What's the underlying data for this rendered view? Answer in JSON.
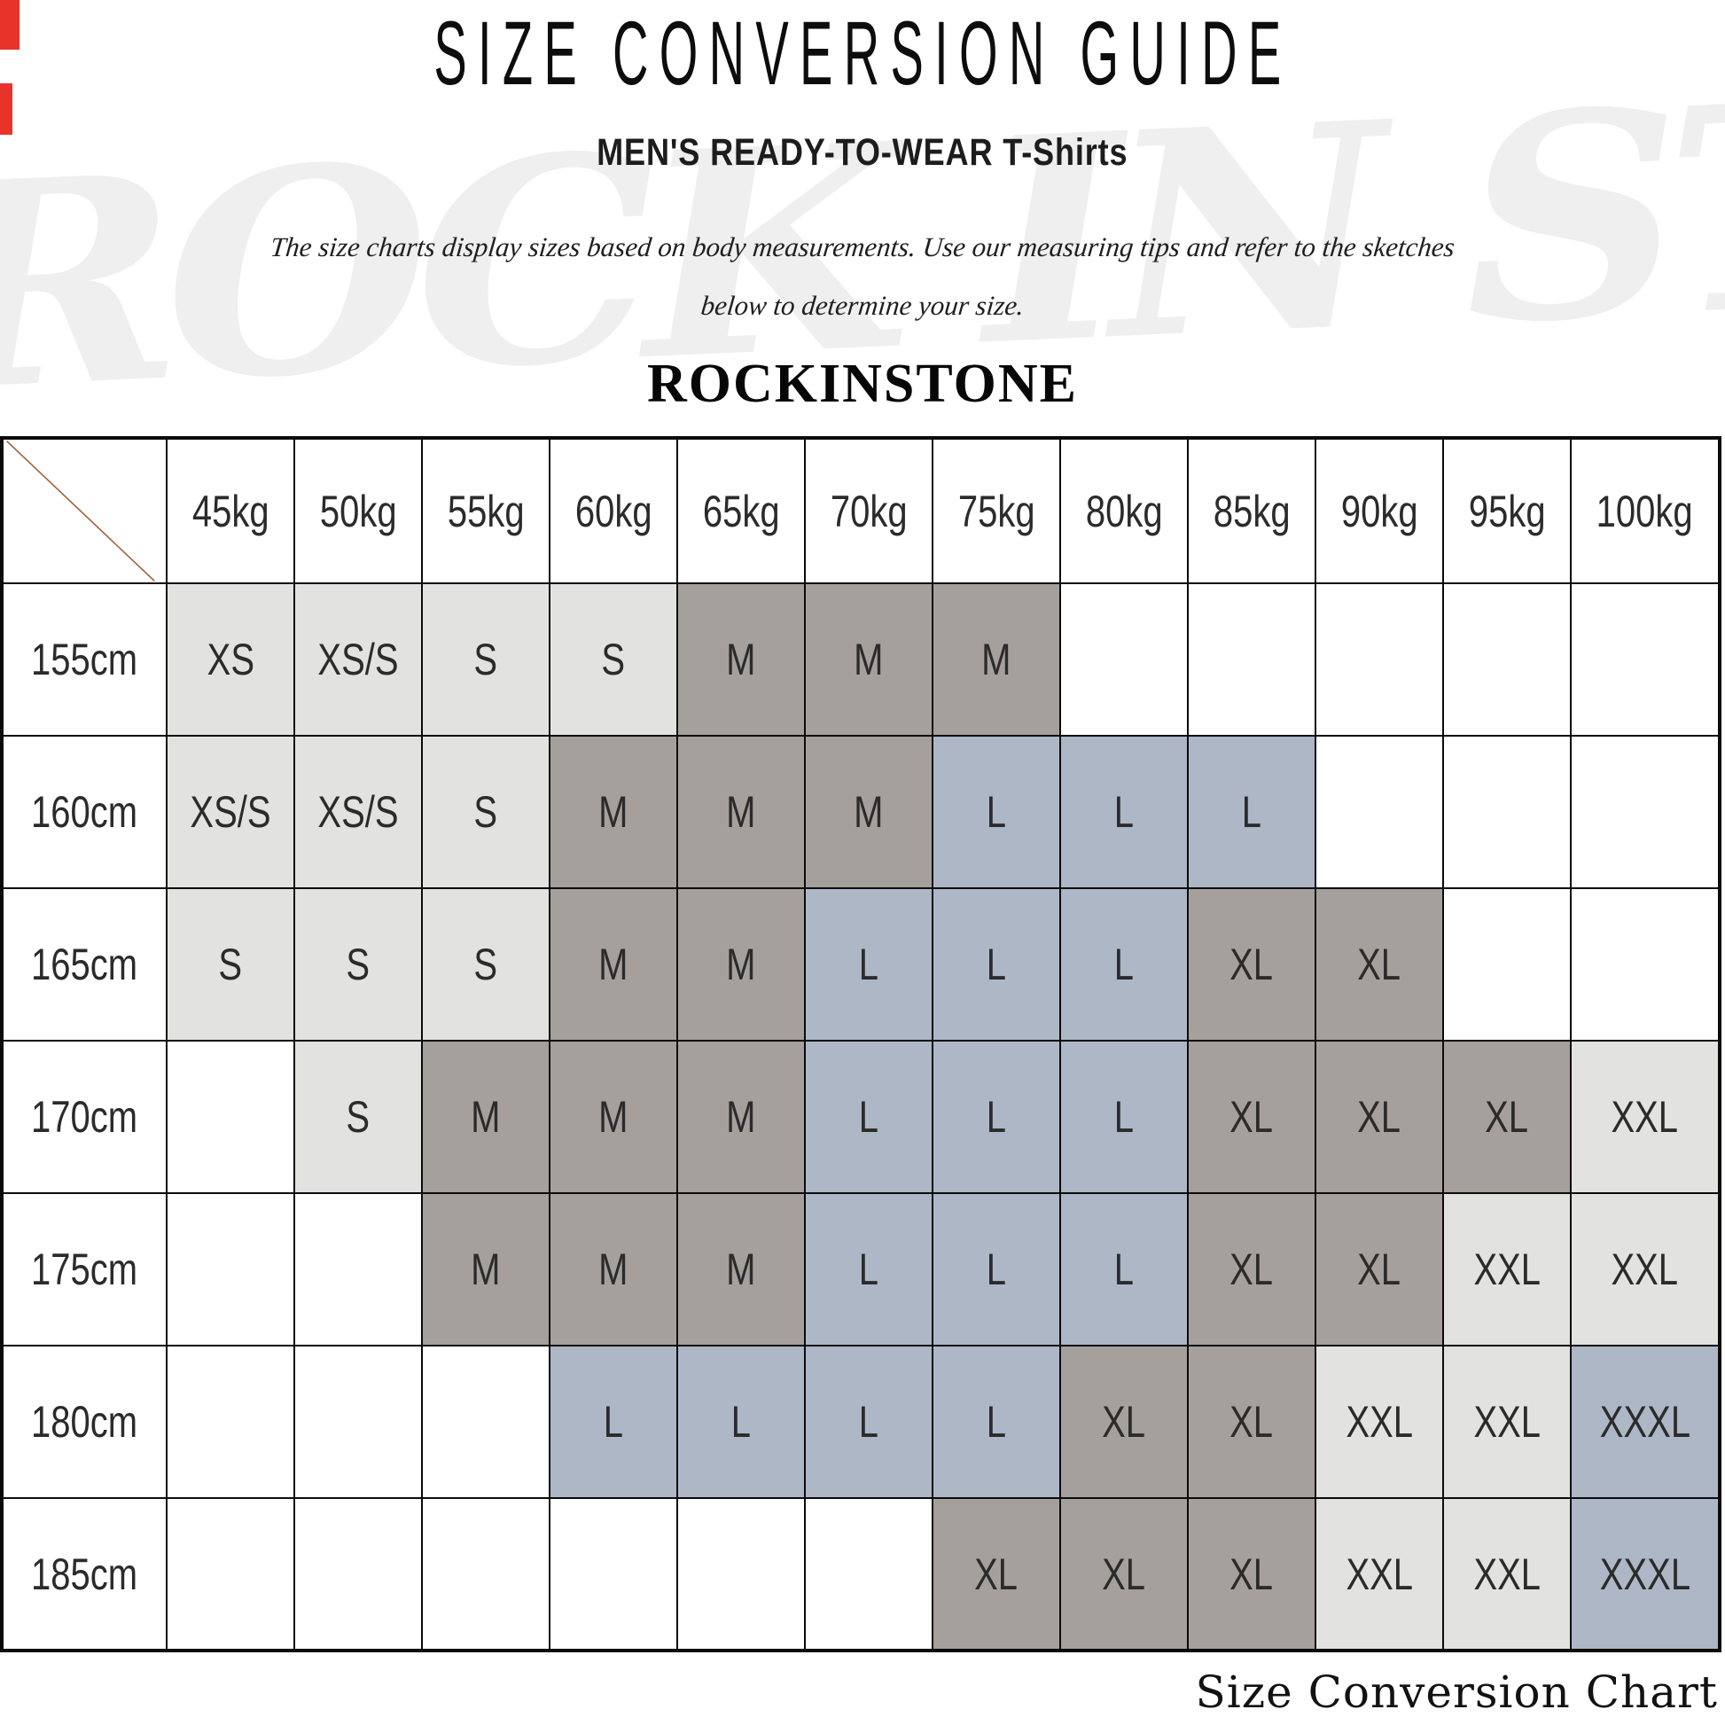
{
  "page": {
    "title": "SIZE CONVERSION GUIDE",
    "subtitle": "MEN'S READY-TO-WEAR",
    "subtitle_secondary": "T-Shirts",
    "description_line1": "The size charts display sizes based on body measurements.  Use our measuring tips and refer to the sketches",
    "description_line2": "below to determine your size.",
    "brand": "ROCKINSTONE",
    "watermark": "ROCK IN STONE",
    "footer_caption": "Size Conversion Chart"
  },
  "colors": {
    "cell_white": "#FFFFFF",
    "cell_light": "#E2E2E0",
    "cell_dark": "#A5A09B",
    "cell_blue": "#ADB7C6",
    "grid_border": "#0B0B0B",
    "diagonal_line": "#A2633F",
    "watermark_gray": "#EFEFEF",
    "artifact_red": "#E8332A"
  },
  "table": {
    "columns": [
      "45kg",
      "50kg",
      "55kg",
      "60kg",
      "65kg",
      "70kg",
      "75kg",
      "80kg",
      "85kg",
      "90kg",
      "95kg",
      "100kg"
    ],
    "rows": [
      {
        "label": "155cm",
        "cells": [
          {
            "v": "XS",
            "f": "light"
          },
          {
            "v": "XS/S",
            "f": "light"
          },
          {
            "v": "S",
            "f": "light"
          },
          {
            "v": "S",
            "f": "light"
          },
          {
            "v": "M",
            "f": "dark"
          },
          {
            "v": "M",
            "f": "dark"
          },
          {
            "v": "M",
            "f": "dark"
          },
          {
            "v": "",
            "f": "white"
          },
          {
            "v": "",
            "f": "white"
          },
          {
            "v": "",
            "f": "white"
          },
          {
            "v": "",
            "f": "white"
          },
          {
            "v": "",
            "f": "white"
          }
        ]
      },
      {
        "label": "160cm",
        "cells": [
          {
            "v": "XS/S",
            "f": "light"
          },
          {
            "v": "XS/S",
            "f": "light"
          },
          {
            "v": "S",
            "f": "light"
          },
          {
            "v": "M",
            "f": "dark"
          },
          {
            "v": "M",
            "f": "dark"
          },
          {
            "v": "M",
            "f": "dark"
          },
          {
            "v": "L",
            "f": "blue"
          },
          {
            "v": "L",
            "f": "blue"
          },
          {
            "v": "L",
            "f": "blue"
          },
          {
            "v": "",
            "f": "white"
          },
          {
            "v": "",
            "f": "white"
          },
          {
            "v": "",
            "f": "white"
          }
        ]
      },
      {
        "label": "165cm",
        "cells": [
          {
            "v": "S",
            "f": "light"
          },
          {
            "v": "S",
            "f": "light"
          },
          {
            "v": "S",
            "f": "light"
          },
          {
            "v": "M",
            "f": "dark"
          },
          {
            "v": "M",
            "f": "dark"
          },
          {
            "v": "L",
            "f": "blue"
          },
          {
            "v": "L",
            "f": "blue"
          },
          {
            "v": "L",
            "f": "blue"
          },
          {
            "v": "XL",
            "f": "dark"
          },
          {
            "v": "XL",
            "f": "dark"
          },
          {
            "v": "",
            "f": "white"
          },
          {
            "v": "",
            "f": "white"
          }
        ]
      },
      {
        "label": "170cm",
        "cells": [
          {
            "v": "",
            "f": "white"
          },
          {
            "v": "S",
            "f": "light"
          },
          {
            "v": "M",
            "f": "dark"
          },
          {
            "v": "M",
            "f": "dark"
          },
          {
            "v": "M",
            "f": "dark"
          },
          {
            "v": "L",
            "f": "blue"
          },
          {
            "v": "L",
            "f": "blue"
          },
          {
            "v": "L",
            "f": "blue"
          },
          {
            "v": "XL",
            "f": "dark"
          },
          {
            "v": "XL",
            "f": "dark"
          },
          {
            "v": "XL",
            "f": "dark"
          },
          {
            "v": "XXL",
            "f": "light"
          }
        ]
      },
      {
        "label": "175cm",
        "cells": [
          {
            "v": "",
            "f": "white"
          },
          {
            "v": "",
            "f": "white"
          },
          {
            "v": "M",
            "f": "dark"
          },
          {
            "v": "M",
            "f": "dark"
          },
          {
            "v": "M",
            "f": "dark"
          },
          {
            "v": "L",
            "f": "blue"
          },
          {
            "v": "L",
            "f": "blue"
          },
          {
            "v": "L",
            "f": "blue"
          },
          {
            "v": "XL",
            "f": "dark"
          },
          {
            "v": "XL",
            "f": "dark"
          },
          {
            "v": "XXL",
            "f": "light"
          },
          {
            "v": "XXL",
            "f": "light"
          }
        ]
      },
      {
        "label": "180cm",
        "cells": [
          {
            "v": "",
            "f": "white"
          },
          {
            "v": "",
            "f": "white"
          },
          {
            "v": "",
            "f": "white"
          },
          {
            "v": "L",
            "f": "blue"
          },
          {
            "v": "L",
            "f": "blue"
          },
          {
            "v": "L",
            "f": "blue"
          },
          {
            "v": "L",
            "f": "blue"
          },
          {
            "v": "XL",
            "f": "dark"
          },
          {
            "v": "XL",
            "f": "dark"
          },
          {
            "v": "XXL",
            "f": "light"
          },
          {
            "v": "XXL",
            "f": "light"
          },
          {
            "v": "XXXL",
            "f": "blue"
          }
        ]
      },
      {
        "label": "185cm",
        "cells": [
          {
            "v": "",
            "f": "white"
          },
          {
            "v": "",
            "f": "white"
          },
          {
            "v": "",
            "f": "white"
          },
          {
            "v": "",
            "f": "white"
          },
          {
            "v": "",
            "f": "white"
          },
          {
            "v": "",
            "f": "white"
          },
          {
            "v": "XL",
            "f": "dark"
          },
          {
            "v": "XL",
            "f": "dark"
          },
          {
            "v": "XL",
            "f": "dark"
          },
          {
            "v": "XXL",
            "f": "light"
          },
          {
            "v": "XXL",
            "f": "light"
          },
          {
            "v": "XXXL",
            "f": "blue"
          }
        ]
      }
    ]
  },
  "chart_data": {
    "type": "table",
    "title": "SIZE CONVERSION GUIDE",
    "subtitle": "MEN'S READY-TO-WEAR T-Shirts",
    "x_axis": "body weight",
    "y_axis": "body height",
    "columns_weight": [
      "45kg",
      "50kg",
      "55kg",
      "60kg",
      "65kg",
      "70kg",
      "75kg",
      "80kg",
      "85kg",
      "90kg",
      "95kg",
      "100kg"
    ],
    "rows_height": [
      "155cm",
      "160cm",
      "165cm",
      "170cm",
      "175cm",
      "180cm",
      "185cm"
    ],
    "values": [
      [
        "XS",
        "XS/S",
        "S",
        "S",
        "M",
        "M",
        "M",
        "",
        "",
        "",
        "",
        ""
      ],
      [
        "XS/S",
        "XS/S",
        "S",
        "M",
        "M",
        "M",
        "L",
        "L",
        "L",
        "",
        "",
        ""
      ],
      [
        "S",
        "S",
        "S",
        "M",
        "M",
        "L",
        "L",
        "L",
        "XL",
        "XL",
        "",
        ""
      ],
      [
        "",
        "S",
        "M",
        "M",
        "M",
        "L",
        "L",
        "L",
        "XL",
        "XL",
        "XL",
        "XXL"
      ],
      [
        "",
        "",
        "M",
        "M",
        "M",
        "L",
        "L",
        "L",
        "XL",
        "XL",
        "XXL",
        "XXL"
      ],
      [
        "",
        "",
        "",
        "L",
        "L",
        "L",
        "L",
        "XL",
        "XL",
        "XXL",
        "XXL",
        "XXXL"
      ],
      [
        "",
        "",
        "",
        "",
        "",
        "",
        "XL",
        "XL",
        "XL",
        "XXL",
        "XXL",
        "XXXL"
      ]
    ]
  }
}
